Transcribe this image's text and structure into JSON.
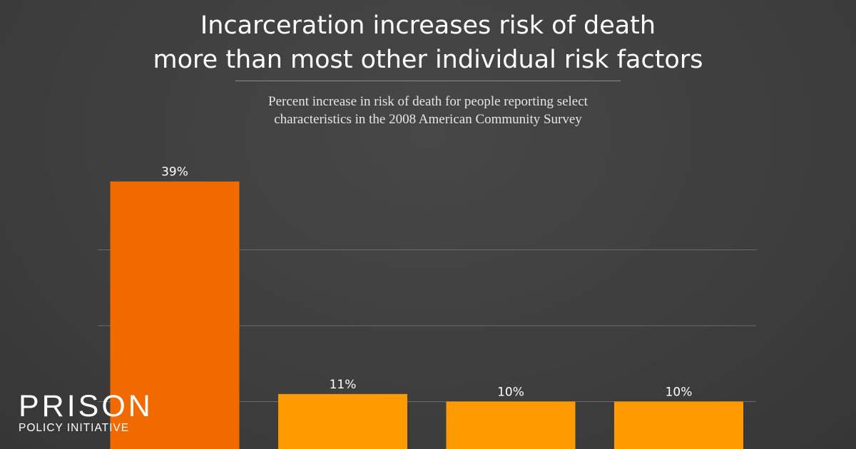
{
  "title_lines": [
    "Incarceration increases risk of death",
    "more than most other individual risk factors"
  ],
  "subtitle_lines": [
    "Percent increase in risk of death for people reporting select",
    "characteristics in the 2008 American Community Survey"
  ],
  "logo": {
    "line1": "PRISON",
    "line2": "POLICY INITIATIVE"
  },
  "colors": {
    "background": "#3f3f3f",
    "highlight_bar": "#f06a00",
    "bar": "#ff9a00",
    "gridline": "#6b6b6b",
    "label": "#ffffff"
  },
  "chart_data": {
    "type": "bar",
    "title": "Incarceration increases risk of death more than most other individual risk factors",
    "values": [
      39,
      11,
      10,
      10
    ],
    "value_labels": [
      "39%",
      "11%",
      "10%",
      "10%"
    ],
    "highlight_index": 0,
    "ylim": [
      0,
      40
    ],
    "gridlines": [
      10,
      20,
      30
    ],
    "grid": true
  }
}
